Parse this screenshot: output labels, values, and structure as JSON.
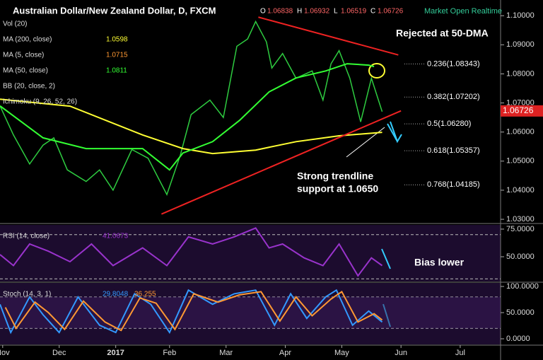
{
  "header": {
    "title": "Australian Dollar/New Zealand Dollar, D, FXCM",
    "ohlc": [
      "O",
      "1.06838",
      "H",
      "1.06932",
      "L",
      "1.06519",
      "C",
      "1.06726"
    ],
    "status": "Market Open Realtime"
  },
  "chart_data": [
    {
      "type": "line",
      "ylim": [
        1.0288,
        1.1054
      ],
      "xlim": [
        0,
        186
      ],
      "yticks": [
        {
          "value": 1.03,
          "label": "1.03000"
        },
        {
          "value": 1.04,
          "label": "1.04000"
        },
        {
          "value": 1.05,
          "label": "1.05000"
        },
        {
          "value": 1.06,
          "label": "1.06000"
        },
        {
          "value": 1.07,
          "label": "1.07000"
        },
        {
          "value": 1.08,
          "label": "1.08000"
        },
        {
          "value": 1.09,
          "label": "1.09000"
        },
        {
          "value": 1.1,
          "label": "1.10000"
        }
      ],
      "xticks": [
        {
          "value": 1,
          "label": "Nov"
        },
        {
          "value": 22,
          "label": "Dec"
        },
        {
          "value": 43,
          "label": "2017"
        },
        {
          "value": 63,
          "label": "Feb"
        },
        {
          "value": 84,
          "label": "Mar"
        },
        {
          "value": 106,
          "label": "Apr"
        },
        {
          "value": 127,
          "label": "May"
        },
        {
          "value": 149,
          "label": "Jun"
        },
        {
          "value": 171,
          "label": "Jul"
        }
      ],
      "legend": [
        {
          "label": "Vol (20)"
        },
        {
          "label": "MA (200, close)",
          "value": 1.0598,
          "color": "#ffff33"
        },
        {
          "label": "MA (5, close)",
          "value": 1.0715,
          "color": "#ff9933"
        },
        {
          "label": "MA (50, close)",
          "value": 1.0811,
          "color": "#33ff33"
        },
        {
          "label": "BB (20, close, 2)"
        },
        {
          "label": "Ichimoku (9, 26, 52, 26)"
        }
      ],
      "series": [
        {
          "color": "#2ecc40",
          "x": [
            0,
            5,
            11,
            16,
            20,
            25,
            32,
            37,
            42,
            49,
            55,
            62,
            67,
            71,
            78,
            83,
            88,
            92,
            95,
            99,
            101,
            105,
            110,
            116,
            120,
            123,
            126,
            130,
            134,
            138,
            142
          ],
          "values": [
            1.069,
            1.059,
            1.049,
            1.0555,
            1.058,
            1.047,
            1.043,
            1.047,
            1.04,
            1.054,
            1.051,
            1.0385,
            1.052,
            1.066,
            1.071,
            1.065,
            1.0895,
            1.092,
            1.098,
            1.091,
            1.082,
            1.087,
            1.0785,
            1.081,
            1.071,
            1.0835,
            1.088,
            1.0785,
            1.0635,
            1.0785,
            1.067
          ]
        },
        {
          "name": "MA (200, close)",
          "color": "#ffff33",
          "x": [
            0,
            26,
            53,
            68,
            79,
            95,
            110,
            126,
            142
          ],
          "values": [
            1.0713,
            1.0689,
            1.059,
            1.0543,
            1.0526,
            1.0538,
            1.0567,
            1.0587,
            1.0599
          ]
        },
        {
          "name": "MA (50, close)",
          "color": "#33ff33",
          "x": [
            0,
            16,
            32,
            53,
            63,
            68,
            79,
            89,
            100,
            110,
            121,
            129,
            137,
            139
          ],
          "values": [
            1.069,
            1.058,
            1.0543,
            1.0543,
            1.047,
            1.0528,
            1.0567,
            1.064,
            1.0738,
            1.0786,
            1.081,
            1.0835,
            1.083,
            1.0825
          ]
        }
      ],
      "trendlines": [
        {
          "x": [
            96,
            148
          ],
          "y": [
            1.0995,
            1.0865
          ]
        },
        {
          "x": [
            60,
            149
          ],
          "y": [
            1.0318,
            1.0673
          ]
        }
      ],
      "fib": [
        {
          "label": "0.236(1.08343)",
          "price": 1.08343
        },
        {
          "label": "0.382(1.07202)",
          "price": 1.07202
        },
        {
          "label": "0.5(1.06280)",
          "price": 1.0628
        },
        {
          "label": "0.618(1.05357)",
          "price": 1.05357
        },
        {
          "label": "0.768(1.04185)",
          "price": 1.04185
        }
      ],
      "last_price": {
        "value": 1.06726,
        "label": "1.06726"
      },
      "annotations": [
        "Rejected at 50-DMA",
        "Strong trendline",
        "support at 1.0650"
      ]
    },
    {
      "type": "line",
      "ylim": [
        27.6,
        78.8
      ],
      "xlim": [
        0,
        186
      ],
      "legend": [
        {
          "label": "RSI (14, close)",
          "value": 41.0673,
          "color": "#9933cc"
        }
      ],
      "yticks": [
        {
          "value": 50,
          "label": "50.0000"
        },
        {
          "value": 75,
          "label": "75.0000"
        }
      ],
      "levels": [
        70,
        30
      ],
      "series": [
        {
          "name": "RSI (14, close)",
          "color": "#9933cc",
          "x": [
            0,
            5,
            11,
            18,
            26,
            34,
            42,
            53,
            62,
            70,
            79,
            87,
            95,
            100,
            105,
            113,
            120,
            126,
            133,
            138,
            142
          ],
          "values": [
            52,
            42,
            61.5,
            55,
            45.5,
            61.5,
            42,
            58,
            42,
            68,
            61.5,
            68,
            76,
            58,
            61.5,
            49,
            42,
            61.5,
            32.7,
            49,
            42
          ]
        }
      ],
      "annotations": [
        "Bias lower"
      ]
    },
    {
      "type": "line",
      "ylim": [
        -10.8,
        106.8
      ],
      "xlim": [
        0,
        186
      ],
      "legend": [
        {
          "label": "Stoch (14, 3, 1)",
          "value": 29.8048,
          "color": "#3399ff"
        },
        {
          "value": 36.255,
          "color": "#ff9933"
        }
      ],
      "yticks": [
        {
          "value": 0,
          "label": "0.0000"
        },
        {
          "value": 50,
          "label": "50.0000"
        },
        {
          "value": 100,
          "label": "100.0000"
        }
      ],
      "levels": [
        80,
        20
      ],
      "series": [
        {
          "color": "#3399ff",
          "x": [
            0,
            4,
            11,
            16,
            22,
            29,
            37,
            43,
            50,
            56,
            63,
            70,
            79,
            87,
            95,
            102,
            108,
            114,
            121,
            125,
            131,
            137,
            142
          ],
          "values": [
            66,
            12,
            80,
            46,
            12,
            80,
            26,
            12,
            86,
            66,
            12,
            93,
            66,
            86,
            93,
            26,
            86,
            39,
            80,
            93,
            26,
            53,
            32
          ]
        },
        {
          "color": "#ff9933",
          "x": [
            2,
            6,
            13,
            18,
            24,
            31,
            39,
            45,
            52,
            58,
            65,
            72,
            81,
            89,
            97,
            104,
            110,
            116,
            123,
            127,
            133,
            139,
            142
          ],
          "values": [
            60,
            20,
            70,
            50,
            18,
            72,
            32,
            16,
            78,
            68,
            18,
            86,
            70,
            84,
            90,
            34,
            80,
            44,
            76,
            90,
            32,
            48,
            36
          ]
        }
      ]
    }
  ]
}
